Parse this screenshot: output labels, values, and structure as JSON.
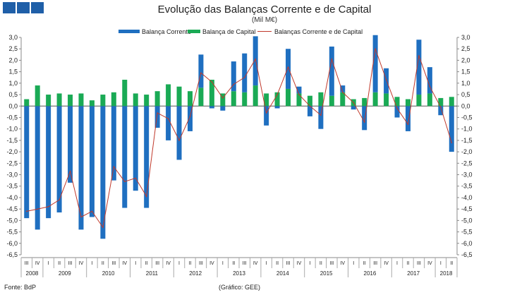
{
  "chart_data": {
    "type": "bar",
    "title": "Evolução das Balanças Corrente e de Capital",
    "subtitle": "(Mil M€)",
    "source": "Fonte: BdP",
    "credit": "(Gráfico: GEE)",
    "ylim": [
      -6.5,
      3.0
    ],
    "yticks": [
      "3,0",
      "2,5",
      "2,0",
      "1,5",
      "1,0",
      "0,5",
      "0,0",
      "-0,5",
      "-1,0",
      "-1,5",
      "-2,0",
      "-2,5",
      "-3,0",
      "-3,5",
      "-4,0",
      "-4,5",
      "-5,0",
      "-5,5",
      "-6,0",
      "-6,5"
    ],
    "quarters": [
      "III",
      "IV",
      "I",
      "II",
      "III",
      "IV",
      "I",
      "II",
      "III",
      "IV",
      "I",
      "II",
      "III",
      "IV",
      "I",
      "II",
      "III",
      "IV",
      "I",
      "II",
      "III",
      "IV",
      "I",
      "II",
      "III",
      "IV",
      "I",
      "II",
      "III",
      "IV",
      "I",
      "II",
      "III",
      "IV",
      "I",
      "II",
      "III",
      "IV",
      "I",
      "II"
    ],
    "years": [
      {
        "label": "2008",
        "count": 2
      },
      {
        "label": "2009",
        "count": 4
      },
      {
        "label": "2010",
        "count": 4
      },
      {
        "label": "2011",
        "count": 4
      },
      {
        "label": "2012",
        "count": 4
      },
      {
        "label": "2013",
        "count": 4
      },
      {
        "label": "2014",
        "count": 4
      },
      {
        "label": "2015",
        "count": 4
      },
      {
        "label": "2016",
        "count": 4
      },
      {
        "label": "2017",
        "count": 4
      },
      {
        "label": "2018",
        "count": 2
      }
    ],
    "series": [
      {
        "name": "Balança Corrente",
        "color": "#1f6fc0",
        "values": [
          -4.9,
          -5.4,
          -4.9,
          -4.65,
          -3.35,
          -5.4,
          -4.85,
          -5.8,
          -3.25,
          -4.45,
          -3.7,
          -4.45,
          -0.95,
          -1.5,
          -2.35,
          -1.1,
          1.45,
          -0.1,
          -0.2,
          1.3,
          1.7,
          2.15,
          -0.85,
          -0.1,
          1.75,
          0.3,
          -0.45,
          -1.0,
          2.15,
          0.3,
          -0.15,
          -1.05,
          2.5,
          1.1,
          -0.5,
          -1.1,
          2.4,
          1.15,
          -0.4,
          -2.0
        ]
      },
      {
        "name": "Balança de Capital",
        "color": "#1aaa55",
        "values": [
          0.3,
          0.9,
          0.5,
          0.55,
          0.5,
          0.55,
          0.25,
          0.5,
          0.6,
          1.15,
          0.55,
          0.5,
          0.65,
          0.95,
          0.85,
          0.65,
          0.8,
          1.15,
          0.55,
          0.65,
          0.6,
          0.9,
          0.55,
          0.6,
          0.75,
          0.55,
          0.45,
          0.6,
          0.45,
          0.6,
          0.3,
          0.35,
          0.6,
          0.55,
          0.4,
          0.3,
          0.5,
          0.55,
          0.35,
          0.4
        ]
      },
      {
        "name": "Balanças Corrente e de Capital",
        "color": "#c0392b",
        "values": [
          -4.6,
          -4.5,
          -4.4,
          -4.1,
          -2.85,
          -4.85,
          -4.6,
          -5.3,
          -2.65,
          -3.3,
          -3.15,
          -3.95,
          -0.3,
          -0.55,
          -1.5,
          -0.45,
          1.45,
          1.05,
          0.35,
          0.95,
          1.25,
          2.05,
          -0.3,
          0.5,
          1.7,
          0.5,
          0.0,
          -0.4,
          2.05,
          0.6,
          0.15,
          -0.7,
          2.5,
          1.15,
          -0.1,
          -0.8,
          2.2,
          0.85,
          -0.05,
          -1.6
        ]
      }
    ]
  }
}
